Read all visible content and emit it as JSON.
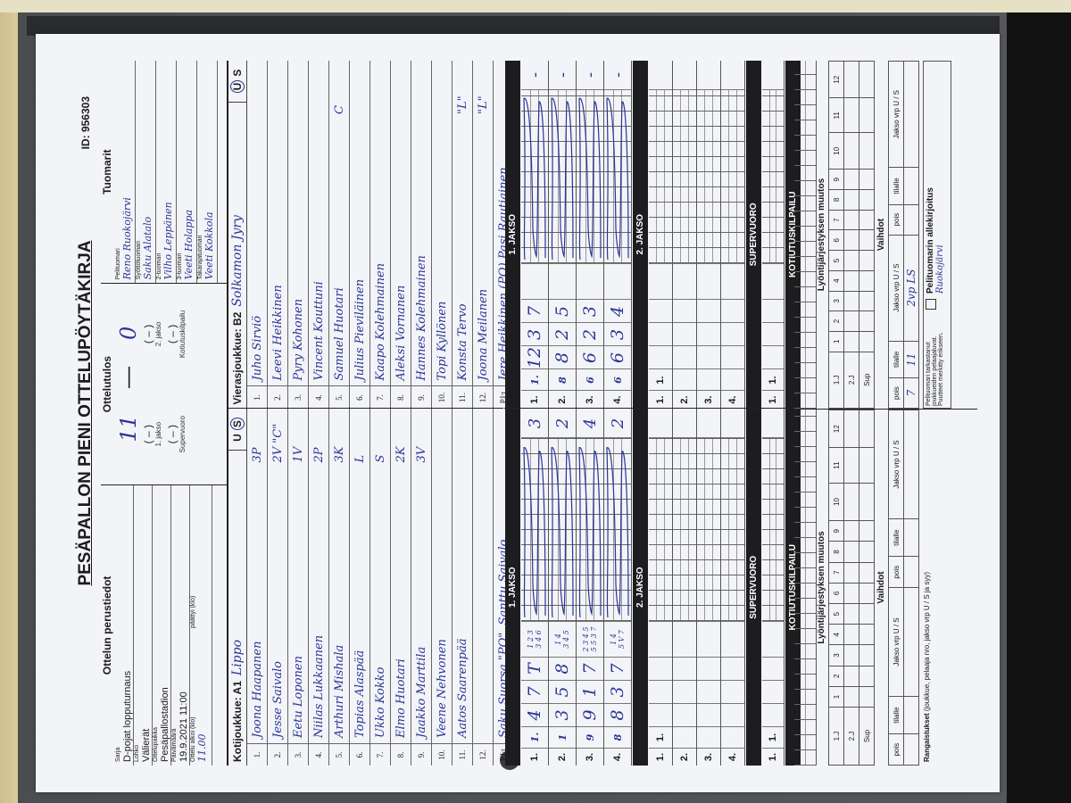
{
  "form": {
    "title": "PESÄPALLON PIENI OTTELUPÖYTÄKIRJA",
    "id": "ID: 956303"
  },
  "basic_info": {
    "heading": "Ottelun perustiedot",
    "fields": [
      {
        "label": "Sarja",
        "value": "D-pojat lopputurnaus"
      },
      {
        "label": "Lohko",
        "value": "Välierät"
      },
      {
        "label": "Ottelupaikka",
        "value": "Pesäpallostadion"
      },
      {
        "label": "Päivämäärä",
        "value": "19.9.2021 11:00"
      }
    ],
    "start_label": "Ottelu alkoi (klo)",
    "start_value": "11.00",
    "end_label": "päättyi (klo)",
    "end_value": ""
  },
  "result": {
    "heading": "Ottelutulos",
    "home": "11",
    "dash": "—",
    "away": "0",
    "periods": [
      {
        "label": "1. jakso",
        "value": "(  –  )"
      },
      {
        "label": "2. jakso",
        "value": "(  –  )"
      },
      {
        "label": "Supervuoro",
        "value": "(  –  )"
      },
      {
        "label": "Kotiutuskilpailu",
        "value": "(  –  )"
      }
    ]
  },
  "referees": {
    "heading": "Tuomarit",
    "items": [
      {
        "label": "Pelituomari",
        "value": "Reno Ruokojärvi"
      },
      {
        "label": "Syöttötuomari",
        "value": "Saku Alatalo"
      },
      {
        "label": "2-tuomari",
        "value": "Vilho Leppänen"
      },
      {
        "label": "3-tuomari",
        "value": "Veeti Holappa"
      },
      {
        "label": "Takarajatuomari",
        "value": "Veeti Kokkola"
      }
    ]
  },
  "home": {
    "label": "Kotijoukkue: A1",
    "name": "Lippo",
    "u": "U",
    "s": "S",
    "selected": "S",
    "players": [
      {
        "no": "1.",
        "name": "Joona Haapanen",
        "pos": "3P"
      },
      {
        "no": "2.",
        "name": "Jesse Saivalo",
        "pos": "2V  \"C\""
      },
      {
        "no": "3.",
        "name": "Eetu Loponen",
        "pos": "1V"
      },
      {
        "no": "4.",
        "name": "Niilas Lukkaanen",
        "pos": "2P"
      },
      {
        "no": "5.",
        "name": "Arthuri Mishala",
        "pos": "3K"
      },
      {
        "no": "6.",
        "name": "Topias Alaspää",
        "pos": "L"
      },
      {
        "no": "7.",
        "name": "Ukko Kokko",
        "pos": "S"
      },
      {
        "no": "8.",
        "name": "Elmo Huotari",
        "pos": "2K"
      },
      {
        "no": "9.",
        "name": "Jaakko Marttila",
        "pos": "3V"
      },
      {
        "no": "10.",
        "name": "Veene Nehvonen",
        "pos": ""
      },
      {
        "no": "11.",
        "name": "Aatos Saarenpää",
        "pos": ""
      },
      {
        "no": "12.",
        "name": "",
        "pos": ""
      }
    ],
    "coaches_label": "PJ:t",
    "coaches": "Saku Suorsa \"PO\", Santtu Saivalo"
  },
  "away": {
    "label": "Vierasjoukkue: B2",
    "name": "Solkamon Jyry",
    "u": "U",
    "s": "S",
    "selected": "U",
    "players": [
      {
        "no": "1.",
        "name": "Juho Sirviö",
        "pos": ""
      },
      {
        "no": "2.",
        "name": "Leevi Heikkinen",
        "pos": ""
      },
      {
        "no": "3.",
        "name": "Pyry Kohonen",
        "pos": ""
      },
      {
        "no": "4.",
        "name": "Vincent Kouttuni",
        "pos": ""
      },
      {
        "no": "5.",
        "name": "Samuel Huotari",
        "pos": "C"
      },
      {
        "no": "6.",
        "name": "Julius Pieviläinen",
        "pos": ""
      },
      {
        "no": "7.",
        "name": "Kaapo Kolehmainen",
        "pos": ""
      },
      {
        "no": "8.",
        "name": "Aleksi Vornanen",
        "pos": ""
      },
      {
        "no": "9.",
        "name": "Hannes Kolehmainen",
        "pos": ""
      },
      {
        "no": "10.",
        "name": "Topi Kyllönen",
        "pos": ""
      },
      {
        "no": "11.",
        "name": "Konsta Tervo",
        "pos": "\"L\""
      },
      {
        "no": "12.",
        "name": "Joona Meilanen",
        "pos": "\"L\""
      }
    ],
    "coaches_label": "PJ:t",
    "coaches": "Jere Heikkinen (PO) Pasi Rautiainen"
  },
  "scoring": {
    "bars": [
      "1. JAKSO",
      "2. JAKSO",
      "SUPERVUORO",
      "KOTIUTUSKILPAILU"
    ],
    "home": {
      "p1": [
        {
          "row": "1.",
          "sub": "1.",
          "nums": [
            "4",
            "7",
            "T"
          ],
          "notes": [
            "1 2 3",
            "3 4 6"
          ],
          "total": "3"
        },
        {
          "row": "2.",
          "sub": "1",
          "nums": [
            "3",
            "5",
            "8"
          ],
          "notes": [
            "1 4",
            "3 4 5"
          ],
          "total": "2"
        },
        {
          "row": "3.",
          "sub": "9",
          "nums": [
            "9",
            "1",
            "7"
          ],
          "notes": [
            "2 3 4 5",
            "5 5 3 7"
          ],
          "total": "4"
        },
        {
          "row": "4.",
          "sub": "8",
          "nums": [
            "8",
            "3",
            "7"
          ],
          "notes": [
            "1 4",
            "5 V 7"
          ],
          "total": "2"
        }
      ],
      "p2": [
        {
          "row": "1.",
          "sub": "1."
        },
        {
          "row": "2.",
          "sub": ""
        },
        {
          "row": "3.",
          "sub": ""
        },
        {
          "row": "4.",
          "sub": ""
        }
      ],
      "sup": [
        {
          "row": "1.",
          "sub": "1."
        }
      ]
    },
    "away": {
      "p1": [
        {
          "row": "1.",
          "sub": "1.",
          "nums": [
            "12",
            "3",
            "7"
          ],
          "notes": [
            "",
            ""
          ],
          "total": "-"
        },
        {
          "row": "2.",
          "sub": "8",
          "nums": [
            "8",
            "2",
            "5"
          ],
          "notes": [
            "",
            ""
          ],
          "total": "-"
        },
        {
          "row": "3.",
          "sub": "6",
          "nums": [
            "6",
            "2",
            "3"
          ],
          "notes": [
            "",
            ""
          ],
          "total": "-"
        },
        {
          "row": "4.",
          "sub": "6",
          "nums": [
            "6",
            "3",
            "4"
          ],
          "notes": [
            "",
            ""
          ],
          "total": "-"
        }
      ],
      "p2": [
        {
          "row": "1.",
          "sub": "1."
        },
        {
          "row": "2.",
          "sub": ""
        },
        {
          "row": "3.",
          "sub": ""
        },
        {
          "row": "4.",
          "sub": ""
        }
      ],
      "sup": [
        {
          "row": "1.",
          "sub": "1."
        }
      ]
    }
  },
  "lineup_changes": {
    "heading": "Lyöntijärjestyksen muutos",
    "rows": [
      "1.J",
      "2.J",
      "Sup"
    ],
    "columns": [
      "1",
      "2",
      "3",
      "4",
      "5",
      "6",
      "7",
      "8",
      "9",
      "10",
      "11",
      "12"
    ]
  },
  "substitutions": {
    "heading": "Vaihdot",
    "columns": [
      "pois",
      "tilalle",
      "Jakso vrp U / S",
      "pois",
      "tilalle",
      "Jakso vrp U / S"
    ],
    "away_entry": {
      "pois": "7",
      "tilalle": "11",
      "jakso": "2vp LS"
    }
  },
  "penalties": {
    "label": "Rangaistukset",
    "hint": "(joukkue, pelaaja nro, jakso vrp U / S ja syy)"
  },
  "check": {
    "line1": "Pelituomari tarkastanut joukkueiden pelaajaluvat.",
    "line2": "Puutteet merkitty erikseen."
  },
  "signature": {
    "label": "Pelituomarin allekirjoitus",
    "value": "Ruokojärvi"
  },
  "colors": {
    "ink": "#2b3596",
    "paper": "#f3f4f7",
    "bars": "#1d1d1f",
    "folder": "#4b4d51"
  }
}
